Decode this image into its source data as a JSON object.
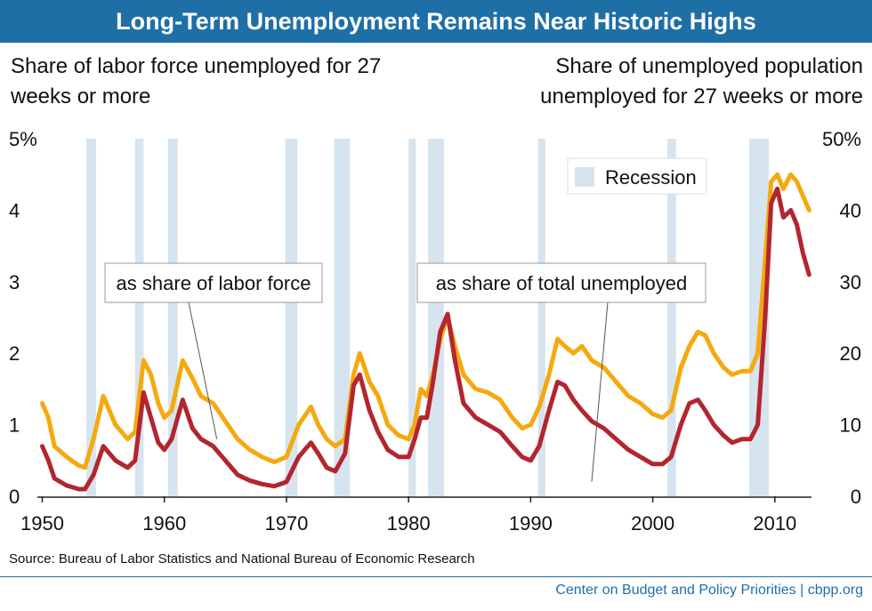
{
  "title": "Long-Term Unemployment Remains Near Historic Highs",
  "left_axis_title": "Share of labor force unemployed for 27 weeks or more",
  "right_axis_title": "Share of unemployed population unemployed for 27 weeks or more",
  "source": "Source: Bureau of Labor Statistics and National Bureau of Economic Research",
  "credit": "Center on Budget and Policy Priorities | cbpp.org",
  "colors": {
    "title_bar": "#1f6fa7",
    "labor_force": "#b3252f",
    "unemployed": "#f5a90f",
    "recession": "#d6e4ef"
  },
  "chart_data": {
    "type": "line",
    "title": "Long-Term Unemployment Remains Near Historic Highs",
    "xlim": [
      1949.6,
      2013.0
    ],
    "xticks": [
      1950,
      1960,
      1970,
      1980,
      1990,
      2000,
      2010
    ],
    "y_left": {
      "label": "Share of labor force unemployed for 27 weeks or more",
      "lim": [
        0,
        5
      ],
      "ticks": [
        "0",
        "1",
        "2",
        "3",
        "4",
        "5%"
      ]
    },
    "y_right": {
      "label": "Share of unemployed population unemployed for 27 weeks or more",
      "lim": [
        0,
        50
      ],
      "ticks": [
        "0",
        "10",
        "20",
        "30",
        "40",
        "50%"
      ]
    },
    "legend": {
      "label": "Recession",
      "position": "top-right"
    },
    "recessions": [
      [
        1953.6,
        1954.4
      ],
      [
        1957.6,
        1958.3
      ],
      [
        1960.3,
        1961.1
      ],
      [
        1969.9,
        1970.9
      ],
      [
        1973.9,
        1975.2
      ],
      [
        1980.0,
        1980.6
      ],
      [
        1981.6,
        1982.9
      ],
      [
        1990.6,
        1991.2
      ],
      [
        2001.2,
        2001.9
      ],
      [
        2007.9,
        2009.5
      ]
    ],
    "annotations": [
      {
        "text": "as share of labor force",
        "series": "labor_force",
        "point": [
          1964.3,
          0.8
        ]
      },
      {
        "text": "as share of total unemployed",
        "series": "unemployed",
        "point": [
          1995.0,
          2.05
        ]
      }
    ],
    "series": [
      {
        "key": "unemployed",
        "axis": "right",
        "x": [
          1950.0,
          1950.5,
          1951.0,
          1952.0,
          1953.0,
          1953.5,
          1954.2,
          1955.0,
          1956.0,
          1957.0,
          1957.6,
          1958.3,
          1958.9,
          1959.5,
          1960.0,
          1960.6,
          1961.5,
          1962.3,
          1963.0,
          1964.0,
          1965.0,
          1966.0,
          1967.0,
          1968.0,
          1969.0,
          1970.0,
          1971.0,
          1972.0,
          1972.6,
          1973.3,
          1974.0,
          1974.8,
          1975.5,
          1976.0,
          1976.8,
          1977.5,
          1978.3,
          1979.2,
          1980.0,
          1980.5,
          1981.0,
          1981.5,
          1982.0,
          1982.6,
          1983.2,
          1983.8,
          1984.5,
          1985.5,
          1986.5,
          1987.5,
          1988.5,
          1989.3,
          1990.0,
          1990.7,
          1991.5,
          1992.2,
          1992.8,
          1993.5,
          1994.2,
          1995.0,
          1996.0,
          1997.0,
          1998.0,
          1999.0,
          2000.0,
          2000.8,
          2001.5,
          2002.3,
          2003.0,
          2003.7,
          2004.3,
          2005.0,
          2005.8,
          2006.5,
          2007.3,
          2008.0,
          2008.6,
          2009.2,
          2009.7,
          2010.2,
          2010.7,
          2011.3,
          2011.8,
          2012.3,
          2012.8
        ],
        "values": [
          13.0,
          11.0,
          7.0,
          5.5,
          4.3,
          4.0,
          8.0,
          14.0,
          10.0,
          8.0,
          9.0,
          19.0,
          17.0,
          13.0,
          11.0,
          12.0,
          19.0,
          16.5,
          14.0,
          13.0,
          10.5,
          8.0,
          6.5,
          5.5,
          4.8,
          5.5,
          10.0,
          12.5,
          10.0,
          8.0,
          7.0,
          8.0,
          17.0,
          20.0,
          16.0,
          14.0,
          10.0,
          8.5,
          8.0,
          10.0,
          15.0,
          14.0,
          17.0,
          22.0,
          25.0,
          21.0,
          17.0,
          15.0,
          14.5,
          13.5,
          11.0,
          9.5,
          10.0,
          12.5,
          17.0,
          22.0,
          21.0,
          20.0,
          21.0,
          19.0,
          18.0,
          16.0,
          14.0,
          13.0,
          11.5,
          11.0,
          12.0,
          18.0,
          21.0,
          23.0,
          22.5,
          20.0,
          18.0,
          17.0,
          17.5,
          17.5,
          20.0,
          33.0,
          44.0,
          45.0,
          43.0,
          45.0,
          44.0,
          42.0,
          40.0
        ]
      },
      {
        "key": "labor_force",
        "axis": "left",
        "x": [
          1950.0,
          1950.5,
          1951.0,
          1952.0,
          1953.0,
          1953.5,
          1954.2,
          1955.0,
          1956.0,
          1957.0,
          1957.6,
          1958.3,
          1958.9,
          1959.5,
          1960.0,
          1960.6,
          1961.5,
          1962.3,
          1963.0,
          1964.0,
          1965.0,
          1966.0,
          1967.0,
          1968.0,
          1969.0,
          1970.0,
          1971.0,
          1972.0,
          1972.6,
          1973.3,
          1974.0,
          1974.8,
          1975.5,
          1976.0,
          1976.8,
          1977.5,
          1978.3,
          1979.2,
          1980.0,
          1980.5,
          1981.0,
          1981.5,
          1982.0,
          1982.6,
          1983.2,
          1983.8,
          1984.5,
          1985.5,
          1986.5,
          1987.5,
          1988.5,
          1989.3,
          1990.0,
          1990.7,
          1991.5,
          1992.2,
          1992.8,
          1993.5,
          1994.2,
          1995.0,
          1996.0,
          1997.0,
          1998.0,
          1999.0,
          2000.0,
          2000.8,
          2001.5,
          2002.3,
          2003.0,
          2003.7,
          2004.3,
          2005.0,
          2005.8,
          2006.5,
          2007.3,
          2008.0,
          2008.6,
          2009.2,
          2009.7,
          2010.2,
          2010.7,
          2011.3,
          2011.8,
          2012.3,
          2012.8
        ],
        "values": [
          0.7,
          0.5,
          0.25,
          0.15,
          0.1,
          0.1,
          0.3,
          0.7,
          0.5,
          0.4,
          0.5,
          1.45,
          1.1,
          0.75,
          0.65,
          0.8,
          1.35,
          0.95,
          0.8,
          0.7,
          0.5,
          0.3,
          0.22,
          0.17,
          0.14,
          0.2,
          0.55,
          0.75,
          0.6,
          0.4,
          0.35,
          0.6,
          1.55,
          1.7,
          1.2,
          0.9,
          0.65,
          0.55,
          0.55,
          0.8,
          1.1,
          1.1,
          1.6,
          2.3,
          2.55,
          1.9,
          1.3,
          1.1,
          1.0,
          0.9,
          0.7,
          0.55,
          0.5,
          0.7,
          1.2,
          1.6,
          1.55,
          1.35,
          1.2,
          1.05,
          0.95,
          0.8,
          0.65,
          0.55,
          0.45,
          0.45,
          0.55,
          1.0,
          1.3,
          1.35,
          1.2,
          1.0,
          0.85,
          0.75,
          0.8,
          0.8,
          1.0,
          2.5,
          4.1,
          4.3,
          3.9,
          4.0,
          3.8,
          3.4,
          3.1
        ]
      }
    ]
  }
}
